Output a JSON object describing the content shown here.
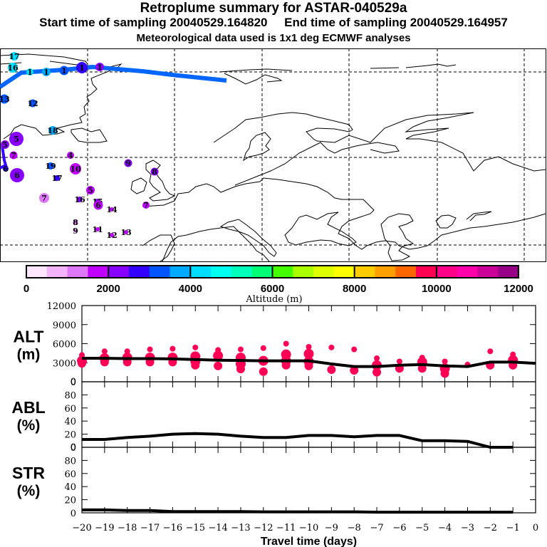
{
  "header": {
    "title": "Retroplume summary for ASTAR-040529a",
    "subtitle": "Start time of sampling 20040529.164820     End time of sampling 20040529.164957",
    "met_note": "Meteorological data used is 1x1 deg ECMWF analyses"
  },
  "colorbar": {
    "label": "Altitude (m)",
    "ticks": [
      "0",
      "2000",
      "4000",
      "6000",
      "8000",
      "10000",
      "12000"
    ],
    "range": [
      0,
      12000
    ],
    "colors": [
      "#ffe6ff",
      "#f3b4fa",
      "#df78f8",
      "#c000ff",
      "#8800ff",
      "#3300ff",
      "#0055ff",
      "#00aaff",
      "#00ddff",
      "#00ffee",
      "#00ffbb",
      "#00ff77",
      "#44ff00",
      "#aaff00",
      "#ddff00",
      "#ffff00",
      "#ffcc00",
      "#ffa000",
      "#ff6600",
      "#ff0055",
      "#ff0088",
      "#ff00aa",
      "#cc0099",
      "#990088"
    ]
  },
  "map": {
    "description": "Retroplume cluster centroids over North Atlantic / Europe, labeled by days back",
    "track_color": "#0066ff",
    "clusters": [
      {
        "label": "17",
        "color": "#00ddff",
        "size": 1.0
      },
      {
        "label": "16",
        "color": "#00ddff",
        "size": 1.2
      },
      {
        "label": "1",
        "color": "#00ddff",
        "size": 0.8
      },
      {
        "label": "1",
        "color": "#00aaff",
        "size": 1.0
      },
      {
        "label": "1",
        "color": "#0055ff",
        "size": 1.1
      },
      {
        "label": "1",
        "color": "#3300ff",
        "size": 1.4
      },
      {
        "label": "1",
        "color": "#8800ff",
        "size": 1.0
      },
      {
        "label": "13",
        "color": "#0055ff",
        "size": 1.1
      },
      {
        "label": "12",
        "color": "#0055ff",
        "size": 0.9
      },
      {
        "label": "18",
        "color": "#00aaff",
        "size": 1.0
      },
      {
        "label": "5",
        "color": "#8800ff",
        "size": 1.8
      },
      {
        "label": "5",
        "color": "#8800ff",
        "size": 1.0
      },
      {
        "label": "7",
        "color": "#c000ff",
        "size": 0.9
      },
      {
        "label": "6",
        "color": "#8800ff",
        "size": 1.8
      },
      {
        "label": "6",
        "color": "#3300ff",
        "size": 0.6
      },
      {
        "label": "4",
        "color": "#c000ff",
        "size": 0.8
      },
      {
        "label": "10",
        "color": "#c000ff",
        "size": 1.4
      },
      {
        "label": "19",
        "color": "#0055ff",
        "size": 0.8
      },
      {
        "label": "17",
        "color": "#3300ff",
        "size": 0.6
      },
      {
        "label": "9",
        "color": "#8800ff",
        "size": 0.9
      },
      {
        "label": "8",
        "color": "#8800ff",
        "size": 0.9
      },
      {
        "label": "7",
        "color": "#df78f8",
        "size": 1.2
      },
      {
        "label": "5",
        "color": "#c000ff",
        "size": 1.0
      },
      {
        "label": "16",
        "color": "#8800ff",
        "size": 0.6
      },
      {
        "label": "15",
        "color": "#8800ff",
        "size": 0.6
      },
      {
        "label": "6",
        "color": "#c000ff",
        "size": 1.1
      },
      {
        "label": "14",
        "color": "#c000ff",
        "size": 0.4
      },
      {
        "label": "7",
        "color": "#c000ff",
        "size": 0.8
      },
      {
        "label": "8",
        "color": "#df78f8",
        "size": 0.5
      },
      {
        "label": "9",
        "color": "#df78f8",
        "size": 0.3
      },
      {
        "label": "11",
        "color": "#c000ff",
        "size": 0.4
      },
      {
        "label": "12",
        "color": "#c000ff",
        "size": 0.4
      },
      {
        "label": "13",
        "color": "#c000ff",
        "size": 0.4
      }
    ]
  },
  "chart_data": [
    {
      "type": "line",
      "panel": "ALT",
      "ylabel_main": "ALT",
      "ylabel_unit": "(m)",
      "ylim": [
        0,
        12000
      ],
      "yticks": [
        "0",
        "3000",
        "6000",
        "9000",
        "12000"
      ],
      "xlim": [
        -20,
        0
      ],
      "x": [
        -20,
        -19,
        -18,
        -17,
        -16,
        -15,
        -14,
        -13,
        -12,
        -11,
        -10,
        -9,
        -8,
        -7,
        -6,
        -5,
        -4,
        -3,
        -2,
        -1,
        0
      ],
      "line": [
        3700,
        3700,
        3650,
        3650,
        3600,
        3500,
        3400,
        3350,
        3300,
        3300,
        3300,
        2800,
        2400,
        2400,
        2600,
        2700,
        2500,
        2400,
        3100,
        3100,
        2900
      ],
      "scatter_color": "#ff0055",
      "scatter": [
        {
          "x": -20,
          "y": [
            4200,
            3300,
            2900
          ]
        },
        {
          "x": -19,
          "y": [
            4800,
            3700,
            3100
          ]
        },
        {
          "x": -18,
          "y": [
            4800,
            3800,
            3100
          ]
        },
        {
          "x": -17,
          "y": [
            5100,
            3800,
            3100
          ]
        },
        {
          "x": -16,
          "y": [
            5200,
            3800,
            3100
          ]
        },
        {
          "x": -15,
          "y": [
            5400,
            4000,
            3200,
            2600
          ]
        },
        {
          "x": -14,
          "y": [
            5000,
            4100,
            2500
          ]
        },
        {
          "x": -13,
          "y": [
            5100,
            3800,
            2800,
            2000
          ]
        },
        {
          "x": -12,
          "y": [
            5300,
            3300,
            1600
          ]
        },
        {
          "x": -11,
          "y": [
            6000,
            4300,
            3300,
            2600
          ]
        },
        {
          "x": -10,
          "y": [
            5500,
            4400,
            3200,
            2500
          ]
        },
        {
          "x": -9,
          "y": [
            5400,
            1900
          ]
        },
        {
          "x": -8,
          "y": [
            5100,
            1800
          ]
        },
        {
          "x": -7,
          "y": [
            3700,
            2600,
            1500
          ]
        },
        {
          "x": -6,
          "y": [
            3200,
            2100
          ]
        },
        {
          "x": -5,
          "y": [
            3800,
            3100,
            2100
          ]
        },
        {
          "x": -4,
          "y": [
            3200,
            2100,
            1300
          ]
        },
        {
          "x": -3,
          "y": [
            2700
          ]
        },
        {
          "x": -2,
          "y": [
            4800,
            2600
          ]
        },
        {
          "x": -1,
          "y": [
            4300,
            3400,
            2600
          ]
        }
      ]
    },
    {
      "type": "line",
      "panel": "ABL",
      "ylabel_main": "ABL",
      "ylabel_unit": "(%)",
      "ylim": [
        0,
        100
      ],
      "yticks": [
        "0",
        "20",
        "40",
        "60",
        "80"
      ],
      "top_tick": "0",
      "xlim": [
        -20,
        0
      ],
      "x": [
        -20,
        -19,
        -18,
        -17,
        -16,
        -15,
        -14,
        -13,
        -12,
        -11,
        -10,
        -9,
        -8,
        -7,
        -6,
        -5,
        -4,
        -3,
        -2,
        -1
      ],
      "values": [
        12,
        12,
        15,
        17,
        20,
        21,
        20,
        17,
        15,
        15,
        18,
        18,
        16,
        18,
        18,
        10,
        10,
        9,
        0,
        0
      ]
    },
    {
      "type": "line",
      "panel": "STR",
      "ylabel_main": "STR",
      "ylabel_unit": "(%)",
      "ylim": [
        0,
        100
      ],
      "yticks": [
        "0",
        "20",
        "40",
        "60",
        "80"
      ],
      "top_tick": "0",
      "xlim": [
        -20,
        0
      ],
      "x": [
        -20,
        -19,
        -18,
        -17,
        -16,
        -15,
        -14,
        -13,
        -12,
        -11,
        -10,
        -9,
        -8,
        -7,
        -6,
        -5,
        -4,
        -3,
        -2,
        -1
      ],
      "values": [
        4.5,
        4.5,
        3.5,
        3.5,
        2,
        2,
        2,
        2,
        1.5,
        1.5,
        1.5,
        1.5,
        1.5,
        1,
        1,
        1,
        1,
        1,
        1,
        1
      ],
      "xlabel": "Travel time (days)",
      "xticks": [
        "-20",
        "-19",
        "-18",
        "-17",
        "-16",
        "-15",
        "-14",
        "-13",
        "-12",
        "-11",
        "-10",
        "-9",
        "-8",
        "-7",
        "-6",
        "-5",
        "-4",
        "-3",
        "-2",
        "-1",
        "0"
      ]
    }
  ]
}
